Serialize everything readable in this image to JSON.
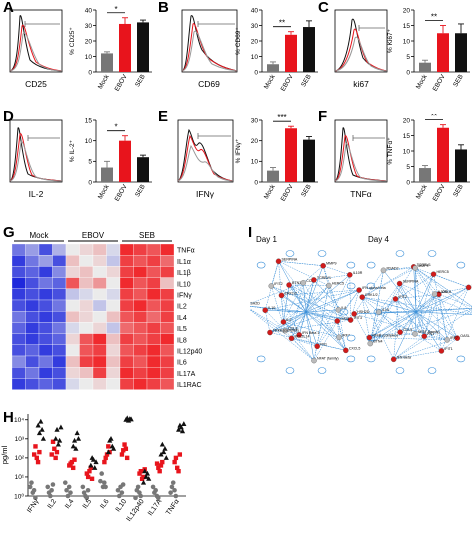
{
  "panels": {
    "A": {
      "label": "A",
      "hist_xlabel": "CD25",
      "ylabel": "% CD25⁺",
      "sig": "*",
      "yticks": [
        "0",
        "10",
        "20",
        "30",
        "40"
      ],
      "ymax": 40
    },
    "B": {
      "label": "B",
      "hist_xlabel": "CD69",
      "ylabel": "% CD69⁺",
      "sig": "**",
      "yticks": [
        "0",
        "10",
        "20",
        "30",
        "40"
      ],
      "ymax": 40
    },
    "C": {
      "label": "C",
      "hist_xlabel": "ki67",
      "ylabel": "% Ki67⁺",
      "sig": "**",
      "yticks": [
        "0",
        "5",
        "10",
        "15",
        "20"
      ],
      "ymax": 20
    },
    "D": {
      "label": "D",
      "hist_xlabel": "IL-2",
      "ylabel": "% IL-2⁺",
      "sig": "*",
      "yticks": [
        "0",
        "5",
        "10",
        "15"
      ],
      "ymax": 15
    },
    "E": {
      "label": "E",
      "hist_xlabel": "IFNγ",
      "ylabel": "% IFNγ⁺",
      "sig": "***",
      "yticks": [
        "0",
        "10",
        "20",
        "30"
      ],
      "ymax": 30
    },
    "F": {
      "label": "F",
      "hist_xlabel": "TNFα",
      "ylabel": "% TNFα⁺",
      "sig": "**",
      "yticks": [
        "0",
        "5",
        "10",
        "15",
        "20"
      ],
      "ymax": 20
    },
    "G": {
      "label": "G",
      "groups": [
        "Mock",
        "EBOV",
        "SEB"
      ]
    },
    "H": {
      "label": "H",
      "ylabel": "pg/ml",
      "yticks": [
        "10⁰",
        "10¹",
        "10²",
        "10³",
        "10⁴"
      ]
    },
    "I": {
      "label": "I",
      "day1": "Day 1",
      "day4": "Day 4"
    }
  },
  "categories": [
    "Mock",
    "EBOV",
    "SEB"
  ],
  "colors": {
    "mock": "#777777",
    "ebov": "#e8141c",
    "seb": "#111111",
    "link": "#3a8fd8",
    "node": "#d11a1a"
  },
  "network_labels_day1": [
    "IFIT3",
    "OASL",
    "IRF7",
    "CXCL5",
    "FN1",
    "NFAT (family)",
    "IFN Beta 1",
    "BCL2L14",
    "CCL3",
    "NFkB (complex)",
    "IL2",
    "HSH2D",
    "IL10",
    "ERK1/2",
    "IFIT2",
    "BTN3A",
    "SERPINA",
    "CCL8",
    "TCRBV1",
    "MMP9",
    "HERC5",
    "IL10R",
    "IFN alpha/beta",
    "IL8"
  ],
  "network_labels_day4": [
    "IFIT3",
    "OASL",
    "IRF7",
    "IFIT1",
    "FN1",
    "NFAT (family)",
    "IFN Beta",
    "CCL3",
    "BTN4",
    "NFkB (complex)",
    "HSH2D",
    "IL10",
    "ERK1/2",
    "IFIT2",
    "RSAD2",
    "SERPINA",
    "TCRBV1",
    "MMP9",
    "HERC5",
    "CCL8",
    "IL10R",
    "IFN alpha/beta",
    "STAT1"
  ],
  "chart_data": [
    {
      "type": "bar",
      "panel": "A",
      "categories": [
        "Mock",
        "EBOV",
        "SEB"
      ],
      "values": [
        12,
        31,
        32
      ],
      "errors": [
        1,
        4,
        1.5
      ],
      "ylim": [
        0,
        40
      ],
      "ylabel": "% CD25⁺",
      "xlabel": "",
      "title": ""
    },
    {
      "type": "bar",
      "panel": "B",
      "categories": [
        "Mock",
        "EBOV",
        "SEB"
      ],
      "values": [
        5,
        24,
        29
      ],
      "errors": [
        1.5,
        2,
        4
      ],
      "ylim": [
        0,
        40
      ],
      "ylabel": "% CD69⁺",
      "xlabel": "",
      "title": ""
    },
    {
      "type": "bar",
      "panel": "C",
      "categories": [
        "Mock",
        "EBOV",
        "SEB"
      ],
      "values": [
        3,
        12.5,
        12.5
      ],
      "errors": [
        0.8,
        2.5,
        3
      ],
      "ylim": [
        0,
        20
      ],
      "ylabel": "% Ki67⁺",
      "xlabel": "",
      "title": ""
    },
    {
      "type": "bar",
      "panel": "D",
      "categories": [
        "Mock",
        "EBOV",
        "SEB"
      ],
      "values": [
        3.5,
        10,
        6
      ],
      "errors": [
        1.5,
        1.2,
        0.5
      ],
      "ylim": [
        0,
        15
      ],
      "ylabel": "% IL-2⁺",
      "xlabel": "",
      "title": ""
    },
    {
      "type": "bar",
      "panel": "E",
      "categories": [
        "Mock",
        "EBOV",
        "SEB"
      ],
      "values": [
        5.5,
        26,
        20.5
      ],
      "errors": [
        1.5,
        1,
        1.5
      ],
      "ylim": [
        0,
        30
      ],
      "ylabel": "% IFNγ⁺",
      "xlabel": "",
      "title": ""
    },
    {
      "type": "bar",
      "panel": "F",
      "categories": [
        "Mock",
        "EBOV",
        "SEB"
      ],
      "values": [
        4.5,
        17.5,
        10.5
      ],
      "errors": [
        0.8,
        1,
        1.5
      ],
      "ylim": [
        0,
        20
      ],
      "ylabel": "% TNFα⁺",
      "xlabel": "",
      "title": ""
    },
    {
      "type": "heatmap",
      "panel": "G",
      "columns": [
        "Mock",
        "Mock",
        "Mock",
        "Mock",
        "EBOV",
        "EBOV",
        "EBOV",
        "EBOV",
        "SEB",
        "SEB",
        "SEB",
        "SEB"
      ],
      "rows": [
        "TNFα",
        "IL1α",
        "IL1β",
        "IL10",
        "IFNγ",
        "IL2",
        "IL4",
        "IL5",
        "IL8",
        "IL12p40",
        "IL6",
        "IL17A",
        "IL1RAC"
      ],
      "values": [
        [
          0.2,
          0.3,
          0.1,
          0.35,
          0.5,
          0.55,
          0.6,
          0.45,
          0.95,
          0.9,
          0.85,
          0.95
        ],
        [
          0.05,
          0.2,
          0.3,
          0.1,
          0.6,
          0.5,
          0.55,
          0.4,
          0.9,
          0.85,
          0.9,
          0.8
        ],
        [
          0.1,
          0.15,
          0.05,
          0.25,
          0.55,
          0.6,
          0.5,
          0.55,
          0.9,
          0.95,
          0.85,
          0.9
        ],
        [
          0.0,
          0.1,
          0.2,
          0.15,
          0.85,
          0.6,
          0.7,
          0.5,
          0.95,
          0.85,
          0.9,
          0.6
        ],
        [
          0.05,
          0.1,
          0.05,
          0.1,
          0.4,
          0.45,
          0.5,
          0.45,
          0.9,
          0.85,
          0.95,
          0.9
        ],
        [
          0.1,
          0.05,
          0.1,
          0.2,
          0.5,
          0.55,
          0.4,
          0.5,
          0.9,
          0.95,
          0.85,
          0.9
        ],
        [
          0.2,
          0.1,
          0.05,
          0.1,
          0.6,
          0.55,
          0.5,
          0.6,
          0.85,
          0.9,
          0.8,
          0.9
        ],
        [
          0.15,
          0.05,
          0.1,
          0.2,
          0.45,
          0.5,
          0.55,
          0.4,
          0.8,
          0.85,
          0.9,
          0.85
        ],
        [
          0.1,
          0.05,
          0.1,
          0.15,
          0.55,
          0.85,
          0.95,
          0.6,
          0.9,
          0.85,
          0.9,
          0.95
        ],
        [
          0.1,
          0.15,
          0.05,
          0.1,
          0.5,
          0.85,
          0.9,
          0.55,
          0.85,
          0.9,
          0.95,
          0.85
        ],
        [
          0.25,
          0.1,
          0.2,
          0.05,
          0.6,
          0.9,
          0.95,
          0.6,
          0.9,
          0.85,
          0.95,
          0.9
        ],
        [
          0.1,
          0.2,
          0.05,
          0.1,
          0.55,
          0.6,
          0.9,
          0.55,
          0.95,
          0.9,
          0.95,
          0.9
        ],
        [
          0.05,
          0.1,
          0.15,
          0.1,
          0.45,
          0.5,
          0.55,
          0.5,
          0.9,
          0.95,
          0.9,
          0.85
        ]
      ]
    },
    {
      "type": "scatter",
      "panel": "H",
      "categories": [
        "IFNγ",
        "IL2",
        "IL4",
        "IL5",
        "IL6",
        "IL10",
        "IL12p40",
        "IL17A",
        "TNFα"
      ],
      "ylabel": "pg/ml",
      "log_y": true,
      "ylim": [
        1,
        20000
      ],
      "series": [
        {
          "name": "Mock",
          "values": [
            [
              3,
              5,
              1.5,
              2,
              0.8
            ],
            [
              3,
              1.5,
              1,
              2,
              4
            ],
            [
              5,
              2,
              1,
              3,
              1.5
            ],
            [
              3,
              1.5,
              1,
              0.8,
              2
            ],
            [
              6,
              15,
              3,
              5,
              3
            ],
            [
              2,
              1,
              3,
              1.5,
              4
            ],
            [
              0.8,
              2,
              3,
              1.5,
              1
            ],
            [
              3,
              1.5,
              2,
              1,
              0.8
            ],
            [
              1.5,
              3,
              5,
              2,
              1
            ]
          ]
        },
        {
          "name": "EBOV",
          "values": [
            [
              150,
              400,
              100,
              60,
              200
            ],
            [
              150,
              700,
              300,
              100,
              200
            ],
            [
              40,
              50,
              60,
              30,
              80
            ],
            [
              15,
              10,
              20,
              30,
              8
            ],
            [
              60,
              100,
              150,
              400,
              200
            ],
            [
              150,
              250,
              500,
              300,
              100
            ],
            [
              15,
              20,
              8,
              10,
              25
            ],
            [
              50,
              30,
              20,
              40,
              60
            ],
            [
              60,
              100,
              30,
              20,
              150
            ]
          ]
        },
        {
          "name": "SEB",
          "values": [
            [
              5000,
              2000,
              8000,
              3000,
              1000
            ],
            [
              1000,
              3000,
              500,
              800,
              4000
            ],
            [
              400,
              800,
              300,
              2000,
              1000
            ],
            [
              40,
              100,
              80,
              30,
              60
            ],
            [
              200,
              800,
              1000,
              400,
              300
            ],
            [
              10000,
              12000,
              9000,
              11000,
              10500
            ],
            [
              5,
              20,
              10,
              15,
              8
            ],
            [
              150,
              500,
              200,
              300,
              100
            ],
            [
              3000,
              5000,
              4000,
              2500,
              6000
            ]
          ]
        }
      ]
    }
  ]
}
